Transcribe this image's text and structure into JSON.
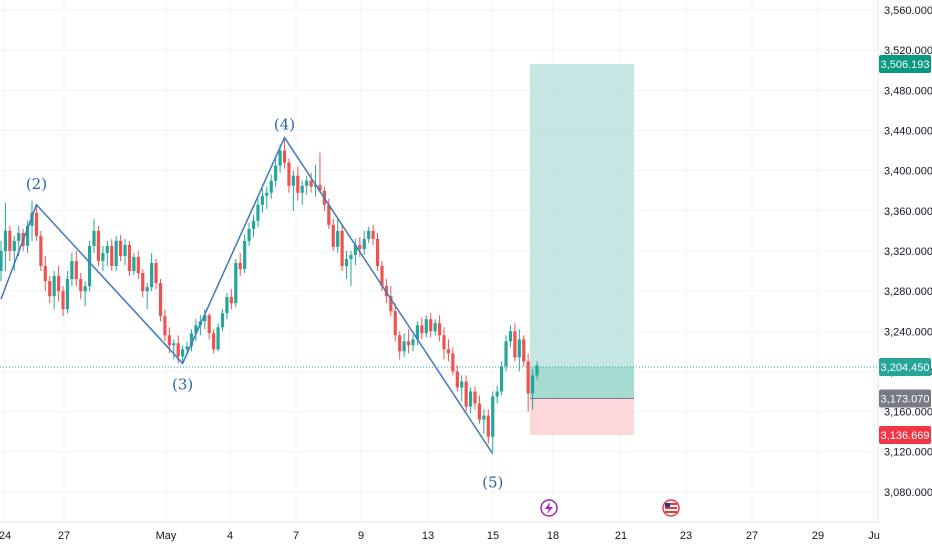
{
  "chart_data": {
    "type": "candlestick",
    "y_axis": {
      "range": [
        3050,
        3570
      ],
      "ticks": [
        "3,560.000",
        "3,520.000",
        "3,480.000",
        "3,440.000",
        "3,400.000",
        "3,360.000",
        "3,320.000",
        "3,280.000",
        "3,240.000",
        "3,200.000",
        "3,160.000",
        "3,120.000",
        "3,080.000"
      ],
      "tick_values": [
        3560,
        3520,
        3480,
        3440,
        3400,
        3360,
        3320,
        3280,
        3240,
        3200,
        3160,
        3120,
        3080
      ]
    },
    "x_axis": {
      "ticks": [
        "24",
        "27",
        "May",
        "4",
        "7",
        "9",
        "13",
        "15",
        "18",
        "21",
        "23",
        "27",
        "29",
        "Ju"
      ]
    },
    "current_price": {
      "label": "3,204.450",
      "value": 3204.45,
      "color": "#26a69a"
    },
    "position": {
      "target": {
        "label": "3,506.193",
        "value": 3506.193,
        "color": "#089981"
      },
      "entry": {
        "label": "3,173.070",
        "value": 3173.07,
        "color": "#787b86"
      },
      "stop": {
        "label": "3,136.669",
        "value": 3136.669,
        "color": "#f23645"
      },
      "profit_fill": "#b2dfdb",
      "loss_fill": "#fccbcd"
    },
    "wave_points": [
      {
        "label": "",
        "date_index": 0,
        "value": 3272
      },
      {
        "label": "(2)",
        "date_index": 8,
        "value": 3366
      },
      {
        "label": "(3)",
        "date_index": 41,
        "value": 3208
      },
      {
        "label": "(4)",
        "date_index": 64,
        "value": 3433
      },
      {
        "label": "(5)",
        "date_index": 111,
        "value": 3118
      }
    ],
    "colors": {
      "up": "#26a69a",
      "down": "#ef5350",
      "wave": "#3d78c0"
    },
    "events": [
      {
        "type": "lightning",
        "icon": "lightning-icon"
      },
      {
        "type": "us-event",
        "icon": "us-flag-icon"
      }
    ],
    "candles": [
      [
        3300,
        3330,
        3290,
        3320
      ],
      [
        3320,
        3368,
        3300,
        3340
      ],
      [
        3340,
        3345,
        3310,
        3320
      ],
      [
        3320,
        3335,
        3300,
        3330
      ],
      [
        3330,
        3345,
        3315,
        3338
      ],
      [
        3338,
        3342,
        3320,
        3325
      ],
      [
        3325,
        3350,
        3318,
        3345
      ],
      [
        3345,
        3370,
        3330,
        3358
      ],
      [
        3358,
        3366,
        3330,
        3335
      ],
      [
        3335,
        3340,
        3300,
        3305
      ],
      [
        3305,
        3315,
        3280,
        3290
      ],
      [
        3290,
        3295,
        3268,
        3275
      ],
      [
        3275,
        3300,
        3262,
        3295
      ],
      [
        3295,
        3305,
        3270,
        3280
      ],
      [
        3280,
        3285,
        3255,
        3262
      ],
      [
        3262,
        3300,
        3258,
        3292
      ],
      [
        3292,
        3318,
        3285,
        3310
      ],
      [
        3310,
        3320,
        3285,
        3292
      ],
      [
        3292,
        3298,
        3272,
        3280
      ],
      [
        3280,
        3290,
        3265,
        3285
      ],
      [
        3285,
        3330,
        3280,
        3325
      ],
      [
        3325,
        3352,
        3318,
        3340
      ],
      [
        3340,
        3345,
        3305,
        3310
      ],
      [
        3310,
        3325,
        3300,
        3318
      ],
      [
        3318,
        3330,
        3305,
        3325
      ],
      [
        3325,
        3332,
        3300,
        3305
      ],
      [
        3305,
        3335,
        3300,
        3330
      ],
      [
        3330,
        3336,
        3310,
        3315
      ],
      [
        3315,
        3332,
        3306,
        3326
      ],
      [
        3326,
        3330,
        3295,
        3300
      ],
      [
        3300,
        3318,
        3296,
        3314
      ],
      [
        3314,
        3320,
        3292,
        3298
      ],
      [
        3298,
        3302,
        3274,
        3280
      ],
      [
        3280,
        3288,
        3262,
        3284
      ],
      [
        3284,
        3318,
        3280,
        3308
      ],
      [
        3308,
        3312,
        3282,
        3288
      ],
      [
        3288,
        3292,
        3250,
        3255
      ],
      [
        3255,
        3262,
        3230,
        3236
      ],
      [
        3236,
        3244,
        3218,
        3226
      ],
      [
        3226,
        3232,
        3212,
        3228
      ],
      [
        3228,
        3236,
        3208,
        3215
      ],
      [
        3215,
        3226,
        3209,
        3222
      ],
      [
        3222,
        3230,
        3216,
        3225
      ],
      [
        3225,
        3242,
        3220,
        3238
      ],
      [
        3238,
        3252,
        3230,
        3246
      ],
      [
        3246,
        3256,
        3236,
        3250
      ],
      [
        3250,
        3262,
        3242,
        3256
      ],
      [
        3256,
        3258,
        3232,
        3238
      ],
      [
        3238,
        3242,
        3218,
        3222
      ],
      [
        3222,
        3248,
        3220,
        3244
      ],
      [
        3244,
        3262,
        3240,
        3258
      ],
      [
        3258,
        3278,
        3252,
        3274
      ],
      [
        3274,
        3282,
        3262,
        3268
      ],
      [
        3268,
        3312,
        3264,
        3308
      ],
      [
        3308,
        3318,
        3295,
        3302
      ],
      [
        3302,
        3336,
        3298,
        3330
      ],
      [
        3330,
        3348,
        3325,
        3342
      ],
      [
        3342,
        3356,
        3334,
        3350
      ],
      [
        3350,
        3372,
        3344,
        3366
      ],
      [
        3366,
        3382,
        3358,
        3375
      ],
      [
        3375,
        3384,
        3362,
        3378
      ],
      [
        3378,
        3396,
        3372,
        3390
      ],
      [
        3390,
        3412,
        3384,
        3405
      ],
      [
        3405,
        3426,
        3398,
        3420
      ],
      [
        3420,
        3433,
        3402,
        3408
      ],
      [
        3408,
        3412,
        3378,
        3385
      ],
      [
        3385,
        3400,
        3360,
        3395
      ],
      [
        3395,
        3404,
        3370,
        3378
      ],
      [
        3378,
        3390,
        3366,
        3385
      ],
      [
        3385,
        3395,
        3376,
        3390
      ],
      [
        3390,
        3398,
        3378,
        3384
      ],
      [
        3384,
        3406,
        3374,
        3386
      ],
      [
        3386,
        3418,
        3380,
        3380
      ],
      [
        3380,
        3384,
        3360,
        3366
      ],
      [
        3366,
        3372,
        3342,
        3346
      ],
      [
        3346,
        3352,
        3320,
        3324
      ],
      [
        3324,
        3352,
        3318,
        3340
      ],
      [
        3340,
        3346,
        3300,
        3305
      ],
      [
        3305,
        3320,
        3292,
        3312
      ],
      [
        3312,
        3320,
        3285,
        3316
      ],
      [
        3316,
        3332,
        3306,
        3326
      ],
      [
        3326,
        3334,
        3314,
        3322
      ],
      [
        3322,
        3340,
        3316,
        3332
      ],
      [
        3332,
        3344,
        3328,
        3340
      ],
      [
        3340,
        3346,
        3326,
        3332
      ],
      [
        3332,
        3338,
        3300,
        3305
      ],
      [
        3305,
        3310,
        3280,
        3285
      ],
      [
        3285,
        3292,
        3268,
        3275
      ],
      [
        3275,
        3285,
        3255,
        3260
      ],
      [
        3260,
        3268,
        3230,
        3236
      ],
      [
        3236,
        3240,
        3212,
        3220
      ],
      [
        3220,
        3238,
        3214,
        3230
      ],
      [
        3230,
        3242,
        3218,
        3226
      ],
      [
        3226,
        3236,
        3220,
        3232
      ],
      [
        3232,
        3250,
        3226,
        3246
      ],
      [
        3246,
        3254,
        3232,
        3238
      ],
      [
        3238,
        3256,
        3234,
        3252
      ],
      [
        3252,
        3258,
        3234,
        3240
      ],
      [
        3240,
        3252,
        3236,
        3248
      ],
      [
        3248,
        3256,
        3230,
        3236
      ],
      [
        3236,
        3244,
        3212,
        3222
      ],
      [
        3222,
        3232,
        3210,
        3218
      ],
      [
        3218,
        3224,
        3196,
        3200
      ],
      [
        3200,
        3206,
        3180,
        3184
      ],
      [
        3184,
        3196,
        3170,
        3190
      ],
      [
        3190,
        3196,
        3160,
        3165
      ],
      [
        3165,
        3184,
        3158,
        3180
      ],
      [
        3180,
        3185,
        3162,
        3168
      ],
      [
        3168,
        3176,
        3148,
        3152
      ],
      [
        3152,
        3162,
        3138,
        3156
      ],
      [
        3156,
        3162,
        3128,
        3135
      ],
      [
        3135,
        3180,
        3120,
        3175
      ],
      [
        3175,
        3186,
        3168,
        3180
      ],
      [
        3180,
        3210,
        3176,
        3205
      ],
      [
        3205,
        3236,
        3200,
        3230
      ],
      [
        3230,
        3246,
        3224,
        3240
      ],
      [
        3240,
        3248,
        3210,
        3214
      ],
      [
        3214,
        3242,
        3200,
        3232
      ],
      [
        3232,
        3236,
        3205,
        3210
      ],
      [
        3210,
        3218,
        3160,
        3178
      ],
      [
        3178,
        3202,
        3162,
        3196
      ],
      [
        3196,
        3210,
        3192,
        3206
      ]
    ]
  }
}
